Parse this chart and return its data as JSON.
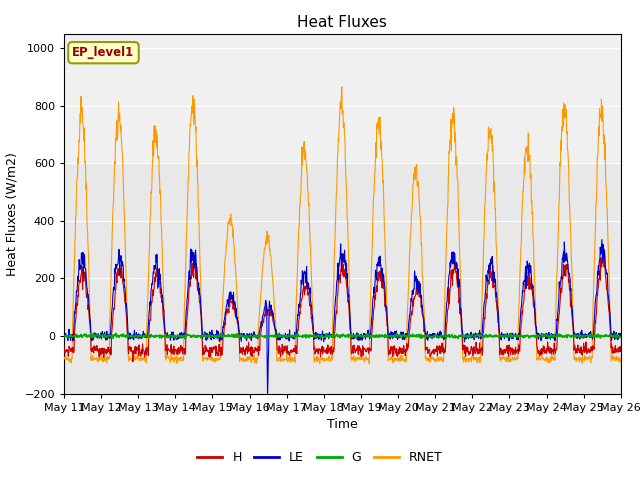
{
  "title": "Heat Fluxes",
  "xlabel": "Time",
  "ylabel": "Heat Fluxes (W/m2)",
  "ylim": [
    -200,
    1050
  ],
  "yticks": [
    -200,
    0,
    200,
    400,
    600,
    800,
    1000
  ],
  "legend_label": "EP_level1",
  "series_names": [
    "H",
    "LE",
    "G",
    "RNET"
  ],
  "series_colors": [
    "#cc0000",
    "#0000cc",
    "#00aa00",
    "#ff9900"
  ],
  "fig_facecolor": "#ffffff",
  "plot_facecolor": "#e8e8e8",
  "band_color": "#d8d8d8",
  "days": 15,
  "start_day": 11,
  "ppd": 96,
  "legend_box_facecolor": "#ffffcc",
  "legend_box_edgecolor": "#999900",
  "title_fontsize": 11,
  "label_fontsize": 9,
  "tick_fontsize": 8
}
